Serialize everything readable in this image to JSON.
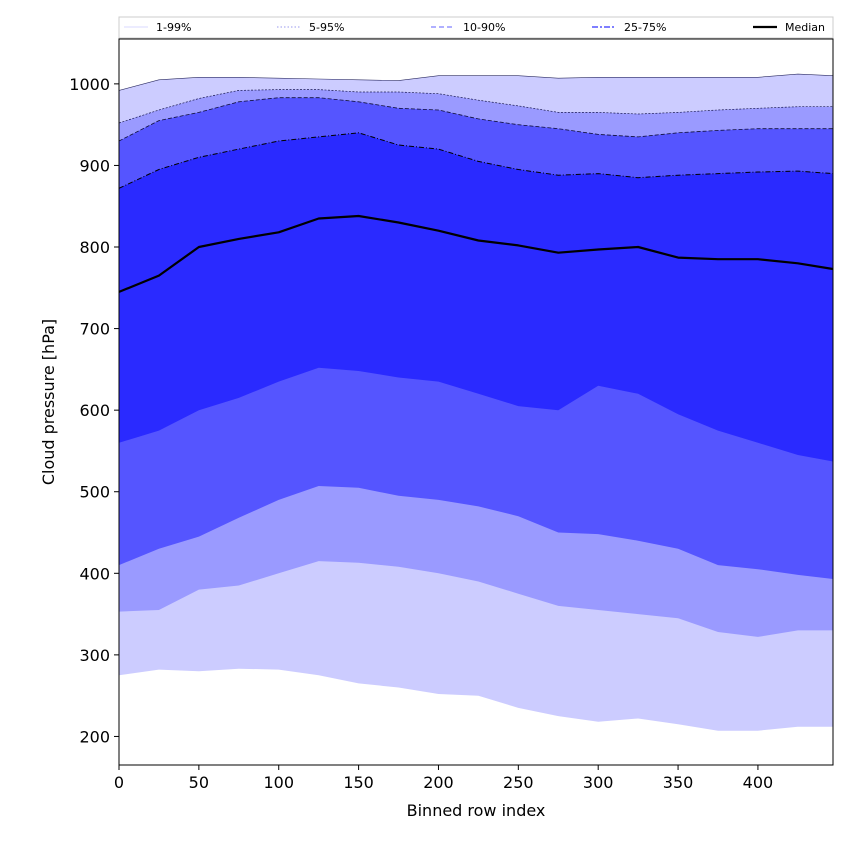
{
  "chart_data": {
    "type": "area",
    "xlabel": "Binned row index",
    "ylabel": "Cloud pressure [hPa]",
    "xlim": [
      0,
      447
    ],
    "ylim": [
      165,
      1055
    ],
    "x_ticks": [
      0,
      50,
      100,
      150,
      200,
      250,
      300,
      350,
      400
    ],
    "y_ticks": [
      200,
      300,
      400,
      500,
      600,
      700,
      800,
      900,
      1000
    ],
    "grid": false,
    "legend_position": "top",
    "legend": [
      {
        "label": "1-99%",
        "style": "solid-thin",
        "color": "#ccccff"
      },
      {
        "label": "5-95%",
        "style": "dotted",
        "color": "#9999ee"
      },
      {
        "label": "10-90%",
        "style": "dashed",
        "color": "#8080ff"
      },
      {
        "label": "25-75%",
        "style": "dashdot",
        "color": "#5555ff"
      },
      {
        "label": "Median",
        "style": "solid-thick",
        "color": "#000000"
      }
    ],
    "x": [
      0,
      25,
      50,
      75,
      100,
      125,
      150,
      175,
      200,
      225,
      250,
      275,
      300,
      325,
      350,
      375,
      400,
      425,
      447
    ],
    "bands": [
      {
        "name": "1-99%",
        "fill": "#ccccff",
        "upper": [
          992,
          1005,
          1008,
          1008,
          1007,
          1006,
          1005,
          1004,
          1010,
          1010,
          1010,
          1007,
          1008,
          1008,
          1008,
          1008,
          1008,
          1012,
          1010
        ],
        "lower": [
          275,
          282,
          280,
          283,
          282,
          275,
          265,
          260,
          252,
          250,
          235,
          225,
          218,
          222,
          215,
          207,
          207,
          212,
          212
        ]
      },
      {
        "name": "5-95%",
        "fill": "#9a9aff",
        "upper": [
          952,
          968,
          982,
          992,
          993,
          993,
          990,
          990,
          988,
          980,
          973,
          965,
          965,
          963,
          965,
          968,
          970,
          972,
          972
        ],
        "lower": [
          353,
          355,
          380,
          385,
          400,
          415,
          413,
          408,
          400,
          390,
          375,
          360,
          355,
          350,
          345,
          328,
          322,
          330,
          330
        ]
      },
      {
        "name": "10-90%",
        "fill": "#5555ff",
        "upper": [
          930,
          955,
          965,
          978,
          983,
          983,
          978,
          970,
          968,
          957,
          950,
          945,
          938,
          935,
          940,
          943,
          945,
          945,
          945
        ],
        "lower": [
          410,
          430,
          445,
          468,
          490,
          507,
          505,
          495,
          490,
          482,
          470,
          450,
          448,
          440,
          430,
          410,
          405,
          398,
          393
        ]
      },
      {
        "name": "25-75%",
        "fill": "#2a2aff",
        "upper": [
          872,
          895,
          910,
          920,
          930,
          935,
          940,
          925,
          920,
          905,
          895,
          888,
          890,
          885,
          888,
          890,
          892,
          893,
          890
        ],
        "lower": [
          560,
          575,
          600,
          615,
          635,
          652,
          648,
          640,
          635,
          620,
          605,
          600,
          630,
          620,
          595,
          575,
          560,
          545,
          537
        ]
      }
    ],
    "median": [
      745,
      765,
      800,
      810,
      818,
      835,
      838,
      830,
      820,
      808,
      802,
      793,
      797,
      800,
      787,
      785,
      785,
      780,
      773
    ]
  }
}
